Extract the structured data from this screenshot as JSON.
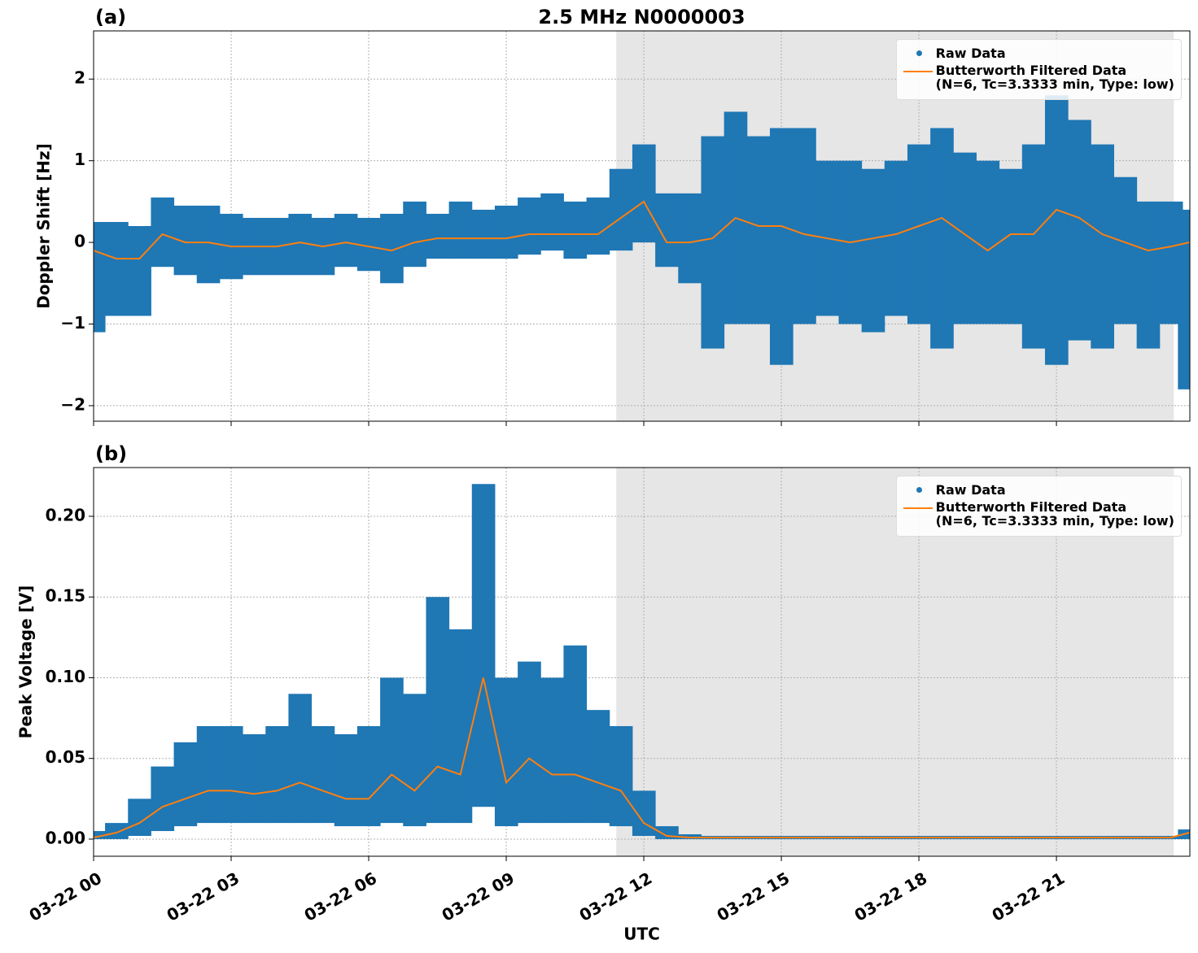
{
  "chart_data": [
    {
      "type": "line",
      "panel_label": "(a)",
      "title": "2.5 MHz N0000003",
      "ylabel": "Doppler Shift [Hz]",
      "xlim": [
        0,
        23.91
      ],
      "ylim": [
        -2.19,
        2.59
      ],
      "xticks": [
        0,
        3,
        6,
        9,
        12,
        15,
        18,
        21
      ],
      "yticks": [
        {
          "value": -2,
          "label": "−2"
        },
        {
          "value": -1,
          "label": "−1"
        },
        0,
        1,
        2
      ],
      "grid": true,
      "shade": [
        11.4,
        23.56
      ],
      "legend": "upper right",
      "x": [
        0,
        0.5,
        1,
        1.5,
        2,
        2.5,
        3,
        3.5,
        4,
        4.5,
        5,
        5.5,
        6,
        6.5,
        7,
        7.5,
        8,
        8.5,
        9,
        9.5,
        10,
        10.5,
        11,
        11.5,
        12,
        12.5,
        13,
        13.5,
        14,
        14.5,
        15,
        15.5,
        16,
        16.5,
        17,
        17.5,
        18,
        18.5,
        19,
        19.5,
        20,
        20.5,
        21,
        21.5,
        22,
        22.5,
        23,
        23.5,
        23.9
      ],
      "series": [
        {
          "name": "Raw Data",
          "color": "#1f77b4",
          "low": [
            -1.1,
            -0.9,
            -0.9,
            -0.3,
            -0.4,
            -0.5,
            -0.45,
            -0.4,
            -0.4,
            -0.4,
            -0.4,
            -0.3,
            -0.35,
            -0.5,
            -0.3,
            -0.2,
            -0.2,
            -0.2,
            -0.2,
            -0.15,
            -0.1,
            -0.2,
            -0.15,
            -0.1,
            0.0,
            -0.3,
            -0.5,
            -1.3,
            -1.0,
            -1.0,
            -1.5,
            -1.0,
            -0.9,
            -1.0,
            -1.1,
            -0.9,
            -1.0,
            -1.3,
            -1.0,
            -1.0,
            -1.0,
            -1.3,
            -1.5,
            -1.2,
            -1.3,
            -1.0,
            -1.3,
            -1.0,
            -1.8
          ],
          "high": [
            0.25,
            0.25,
            0.2,
            0.55,
            0.45,
            0.45,
            0.35,
            0.3,
            0.3,
            0.35,
            0.3,
            0.35,
            0.3,
            0.35,
            0.5,
            0.35,
            0.5,
            0.4,
            0.45,
            0.55,
            0.6,
            0.5,
            0.55,
            0.9,
            1.2,
            0.6,
            0.6,
            1.3,
            1.6,
            1.3,
            1.4,
            1.4,
            1.0,
            1.0,
            0.9,
            1.0,
            1.2,
            1.4,
            1.1,
            1.0,
            0.9,
            1.2,
            1.8,
            1.5,
            1.2,
            0.8,
            0.5,
            0.5,
            0.4
          ]
        },
        {
          "name": "Butterworth Filtered Data\n(N=6, Tc=3.3333 min, Type: low)",
          "color": "#ff7f0e",
          "values": [
            -0.1,
            -0.2,
            -0.2,
            0.1,
            0.0,
            0.0,
            -0.05,
            -0.05,
            -0.05,
            0.0,
            -0.05,
            0.0,
            -0.05,
            -0.1,
            0.0,
            0.05,
            0.05,
            0.05,
            0.05,
            0.1,
            0.1,
            0.1,
            0.1,
            0.3,
            0.5,
            0.0,
            0.0,
            0.05,
            0.3,
            0.2,
            0.2,
            0.1,
            0.05,
            0.0,
            0.05,
            0.1,
            0.2,
            0.3,
            0.1,
            -0.1,
            0.1,
            0.1,
            0.4,
            0.3,
            0.1,
            0.0,
            -0.1,
            -0.05,
            0.0
          ]
        }
      ]
    },
    {
      "type": "line",
      "panel_label": "(b)",
      "ylabel": "Peak Voltage [V]",
      "xlabel": "UTC",
      "xlim": [
        0,
        23.91
      ],
      "ylim": [
        -0.0106,
        0.2302
      ],
      "xticks": [
        {
          "value": 0,
          "label": "03-22 00"
        },
        {
          "value": 3,
          "label": "03-22 03"
        },
        {
          "value": 6,
          "label": "03-22 06"
        },
        {
          "value": 9,
          "label": "03-22 09"
        },
        {
          "value": 12,
          "label": "03-22 12"
        },
        {
          "value": 15,
          "label": "03-22 15"
        },
        {
          "value": 18,
          "label": "03-22 18"
        },
        {
          "value": 21,
          "label": "03-22 21"
        }
      ],
      "yticks": [
        {
          "value": 0,
          "label": "0.00"
        },
        {
          "value": 0.05,
          "label": "0.05"
        },
        {
          "value": 0.1,
          "label": "0.10"
        },
        {
          "value": 0.15,
          "label": "0.15"
        },
        {
          "value": 0.2,
          "label": "0.20"
        }
      ],
      "grid": true,
      "shade": [
        11.4,
        23.56
      ],
      "legend": "upper right",
      "x": [
        0,
        0.5,
        1,
        1.5,
        2,
        2.5,
        3,
        3.5,
        4,
        4.5,
        5,
        5.5,
        6,
        6.5,
        7,
        7.5,
        8,
        8.5,
        9,
        9.5,
        10,
        10.5,
        11,
        11.5,
        12,
        12.5,
        13,
        13.5,
        14,
        14.5,
        15,
        15.5,
        16,
        16.5,
        17,
        17.5,
        18,
        18.5,
        19,
        19.5,
        20,
        20.5,
        21,
        21.5,
        22,
        22.5,
        23,
        23.5,
        23.9
      ],
      "series": [
        {
          "name": "Raw Data",
          "color": "#1f77b4",
          "low": [
            0.0,
            0.0,
            0.002,
            0.005,
            0.008,
            0.01,
            0.01,
            0.01,
            0.01,
            0.01,
            0.01,
            0.008,
            0.008,
            0.01,
            0.008,
            0.01,
            0.01,
            0.02,
            0.008,
            0.01,
            0.01,
            0.01,
            0.01,
            0.008,
            0.002,
            0.0,
            0.0,
            0.0,
            0.0,
            0.0,
            0.0,
            0.0,
            0.0,
            0.0,
            0.0,
            0.0,
            0.0,
            0.0,
            0.0,
            0.0,
            0.0,
            0.0,
            0.0,
            0.0,
            0.0,
            0.0,
            0.0,
            0.0,
            0.0
          ],
          "high": [
            0.005,
            0.01,
            0.025,
            0.045,
            0.06,
            0.07,
            0.07,
            0.065,
            0.07,
            0.09,
            0.07,
            0.065,
            0.07,
            0.1,
            0.09,
            0.15,
            0.13,
            0.22,
            0.1,
            0.11,
            0.1,
            0.12,
            0.08,
            0.07,
            0.03,
            0.008,
            0.003,
            0.002,
            0.002,
            0.002,
            0.002,
            0.002,
            0.002,
            0.002,
            0.002,
            0.002,
            0.002,
            0.002,
            0.002,
            0.002,
            0.002,
            0.002,
            0.002,
            0.002,
            0.002,
            0.002,
            0.002,
            0.002,
            0.006
          ]
        },
        {
          "name": "Butterworth Filtered Data\n(N=6, Tc=3.3333 min, Type: low)",
          "color": "#ff7f0e",
          "values": [
            0.001,
            0.004,
            0.01,
            0.02,
            0.025,
            0.03,
            0.03,
            0.028,
            0.03,
            0.035,
            0.03,
            0.025,
            0.025,
            0.04,
            0.03,
            0.045,
            0.04,
            0.1,
            0.035,
            0.05,
            0.04,
            0.04,
            0.035,
            0.03,
            0.01,
            0.002,
            0.001,
            0.001,
            0.001,
            0.001,
            0.001,
            0.001,
            0.001,
            0.001,
            0.001,
            0.001,
            0.001,
            0.001,
            0.001,
            0.001,
            0.001,
            0.001,
            0.001,
            0.001,
            0.001,
            0.001,
            0.001,
            0.001,
            0.004
          ]
        }
      ]
    }
  ]
}
